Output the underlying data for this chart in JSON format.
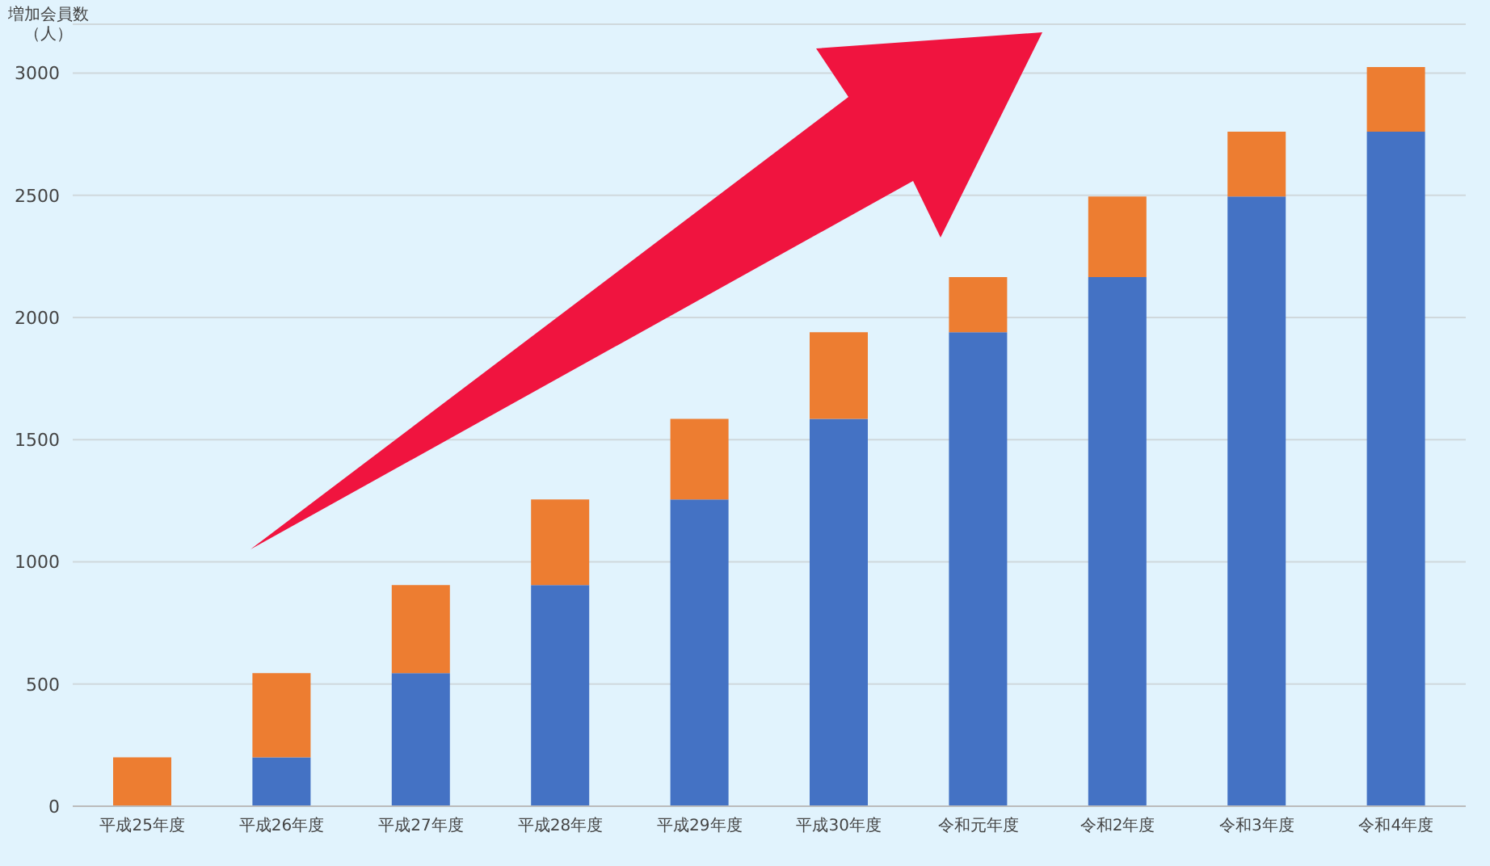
{
  "chart_data": {
    "type": "bar",
    "ylabel": "増加会員数（人）",
    "categories": [
      "平成25年度",
      "平成26年度",
      "平成27年度",
      "平成28年度",
      "平成29年度",
      "平成30年度",
      "令和元年度",
      "令和2年度",
      "令和3年度",
      "令和4年度"
    ],
    "stacked": true,
    "ylim": [
      0,
      3200
    ],
    "yticks": [
      0,
      500,
      1000,
      1500,
      2000,
      2500,
      3000
    ],
    "grid": "y",
    "legend": false,
    "series": [
      {
        "color": "#4472c4",
        "values": [
          0,
          200,
          545,
          905,
          1255,
          1585,
          1940,
          2165,
          2495,
          2760
        ]
      },
      {
        "color": "#ed7d31",
        "values": [
          200,
          345,
          360,
          350,
          330,
          355,
          225,
          330,
          265,
          265
        ]
      }
    ]
  }
}
